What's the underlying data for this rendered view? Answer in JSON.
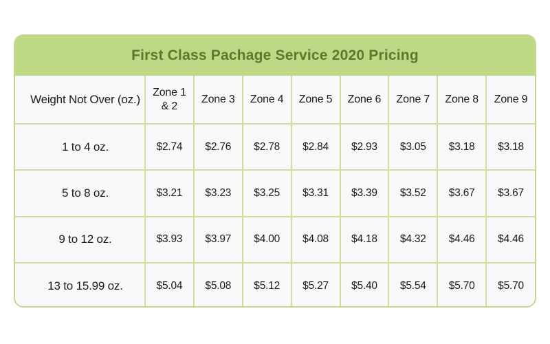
{
  "title": "First Class Pachage Service 2020 Pricing",
  "colors": {
    "title_bar_bg": "#bdd985",
    "title_text": "#597a2e",
    "grid_border": "#cde09b",
    "cell_bg": "#f8f8fb",
    "cell_text": "#1b1b1b",
    "page_bg": "#ffffff"
  },
  "table": {
    "weight_header": "Weight Not Over (oz.)",
    "zone_headers": [
      "Zone 1 & 2",
      "Zone 3",
      "Zone 4",
      "Zone 5",
      "Zone 6",
      "Zone 7",
      "Zone 8",
      "Zone 9"
    ],
    "rows": [
      {
        "weight": "1 to 4 oz.",
        "prices": [
          "$2.74",
          "$2.76",
          "$2.78",
          "$2.84",
          "$2.93",
          "$3.05",
          "$3.18",
          "$3.18"
        ]
      },
      {
        "weight": "5 to 8 oz.",
        "prices": [
          "$3.21",
          "$3.23",
          "$3.25",
          "$3.31",
          "$3.39",
          "$3.52",
          "$3.67",
          "$3.67"
        ]
      },
      {
        "weight": "9 to 12 oz.",
        "prices": [
          "$3.93",
          "$3.97",
          "$4.00",
          "$4.08",
          "$4.18",
          "$4.32",
          "$4.46",
          "$4.46"
        ]
      },
      {
        "weight": "13 to 15.99 oz.",
        "prices": [
          "$5.04",
          "$5.08",
          "$5.12",
          "$5.27",
          "$5.40",
          "$5.54",
          "$5.70",
          "$5.70"
        ]
      }
    ]
  },
  "chart_data": {
    "type": "table",
    "title": "First Class Pachage Service 2020 Pricing",
    "columns": [
      "Weight Not Over (oz.)",
      "Zone 1 & 2",
      "Zone 3",
      "Zone 4",
      "Zone 5",
      "Zone 6",
      "Zone 7",
      "Zone 8",
      "Zone 9"
    ],
    "rows": [
      [
        "1 to 4 oz.",
        2.74,
        2.76,
        2.78,
        2.84,
        2.93,
        3.05,
        3.18,
        3.18
      ],
      [
        "5 to 8 oz.",
        3.21,
        3.23,
        3.25,
        3.31,
        3.39,
        3.52,
        3.67,
        3.67
      ],
      [
        "9 to 12 oz.",
        3.93,
        3.97,
        4.0,
        4.08,
        4.18,
        4.32,
        4.46,
        4.46
      ],
      [
        "13 to 15.99 oz.",
        5.04,
        5.08,
        5.12,
        5.27,
        5.4,
        5.54,
        5.7,
        5.7
      ]
    ]
  }
}
